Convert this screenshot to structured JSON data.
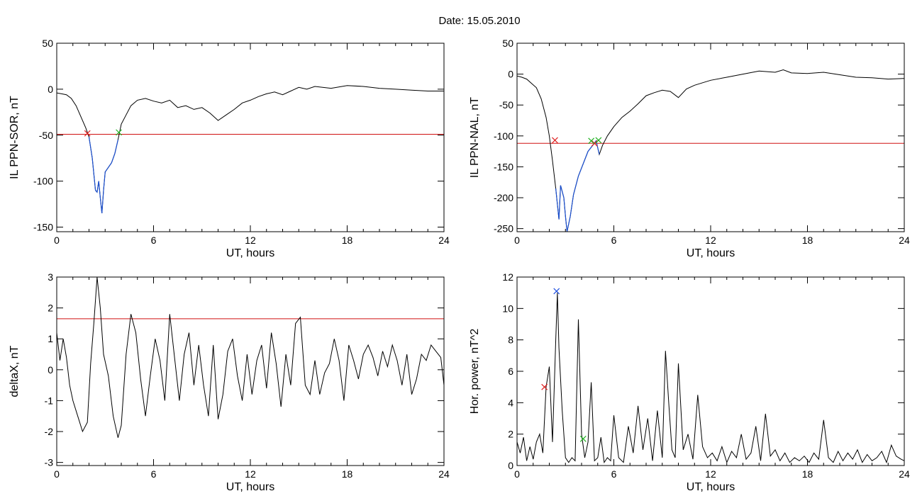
{
  "title": "Date:  15.05.2010",
  "chart_data": [
    {
      "id": "p1",
      "type": "line",
      "ylabel": "IL PPN-SOR, nT",
      "xlabel": "UT, hours",
      "xlim": [
        0,
        24
      ],
      "ylim": [
        -155,
        50
      ],
      "xticks": [
        0,
        6,
        12,
        18,
        24
      ],
      "yticks": [
        50,
        0,
        -50,
        -100,
        -150
      ],
      "threshold": -49,
      "x": [
        0,
        0.3,
        0.6,
        0.9,
        1.2,
        1.5,
        1.8,
        2.0,
        2.2,
        2.4,
        2.5,
        2.6,
        2.7,
        2.8,
        2.9,
        3.0,
        3.2,
        3.4,
        3.6,
        3.8,
        4.0,
        4.3,
        4.6,
        5.0,
        5.5,
        6.0,
        6.5,
        7.0,
        7.5,
        8.0,
        8.5,
        9.0,
        9.5,
        10.0,
        10.5,
        11.0,
        11.5,
        12.0,
        12.5,
        13.0,
        13.5,
        14.0,
        14.5,
        15.0,
        15.5,
        16.0,
        17.0,
        18.0,
        19.0,
        20.0,
        21.0,
        22.0,
        23.0,
        24.0
      ],
      "y": [
        -4,
        -5,
        -6,
        -10,
        -18,
        -30,
        -42,
        -52,
        -75,
        -110,
        -112,
        -100,
        -118,
        -135,
        -110,
        -90,
        -85,
        -80,
        -70,
        -55,
        -38,
        -28,
        -18,
        -12,
        -10,
        -13,
        -15,
        -12,
        -20,
        -18,
        -22,
        -20,
        -26,
        -34,
        -28,
        -22,
        -15,
        -12,
        -8,
        -5,
        -3,
        -6,
        -2,
        2,
        0,
        3,
        1,
        4,
        3,
        1,
        0,
        -1,
        -2,
        -2
      ],
      "highlight_range": [
        2.0,
        3.85
      ],
      "markers": [
        {
          "x": 1.9,
          "y": -48,
          "color": "#e02020"
        },
        {
          "x": 3.85,
          "y": -47,
          "color": "#20b020"
        }
      ]
    },
    {
      "id": "p2",
      "type": "line",
      "ylabel": "IL PPN-NAL, nT",
      "xlabel": "UT, hours",
      "xlim": [
        0,
        24
      ],
      "ylim": [
        -255,
        50
      ],
      "xticks": [
        0,
        6,
        12,
        18,
        24
      ],
      "yticks": [
        50,
        0,
        -50,
        -100,
        -150,
        -200,
        -250
      ],
      "threshold": -112,
      "x": [
        0,
        0.3,
        0.6,
        0.9,
        1.2,
        1.5,
        1.8,
        2.0,
        2.2,
        2.4,
        2.6,
        2.7,
        2.9,
        3.0,
        3.1,
        3.3,
        3.5,
        3.8,
        4.1,
        4.4,
        4.7,
        4.9,
        5.1,
        5.3,
        5.6,
        6.0,
        6.5,
        7.0,
        7.5,
        8.0,
        8.5,
        9.0,
        9.5,
        10.0,
        10.5,
        11.0,
        11.5,
        12.0,
        13.0,
        14.0,
        15.0,
        16.0,
        16.5,
        17.0,
        18.0,
        19.0,
        20.0,
        21.0,
        22.0,
        23.0,
        24.0
      ],
      "y": [
        -3,
        -5,
        -8,
        -15,
        -22,
        -40,
        -70,
        -100,
        -140,
        -185,
        -235,
        -180,
        -200,
        -230,
        -255,
        -230,
        -195,
        -165,
        -145,
        -125,
        -115,
        -108,
        -130,
        -115,
        -100,
        -85,
        -70,
        -60,
        -48,
        -35,
        -30,
        -26,
        -28,
        -38,
        -24,
        -18,
        -14,
        -10,
        -5,
        0,
        5,
        3,
        7,
        2,
        1,
        3,
        -1,
        -5,
        -6,
        -8,
        -7
      ],
      "highlight_range": [
        2.3,
        5.1
      ],
      "markers": [
        {
          "x": 2.35,
          "y": -107,
          "color": "#e02020"
        },
        {
          "x": 4.8,
          "y": -112,
          "color": "#e02020"
        },
        {
          "x": 4.6,
          "y": -108,
          "color": "#20b020"
        },
        {
          "x": 5.05,
          "y": -107,
          "color": "#20b020"
        }
      ]
    },
    {
      "id": "p3",
      "type": "line",
      "ylabel": "deltaX, nT",
      "xlabel": "UT, hours",
      "xlim": [
        0,
        24
      ],
      "ylim": [
        -3.1,
        3.0
      ],
      "xticks": [
        0,
        6,
        12,
        18,
        24
      ],
      "yticks": [
        3,
        2,
        1,
        0,
        -1,
        -2,
        -3
      ],
      "threshold": 1.65,
      "x": [
        0,
        0.2,
        0.4,
        0.6,
        0.8,
        1.0,
        1.3,
        1.6,
        1.9,
        2.1,
        2.3,
        2.5,
        2.7,
        2.9,
        3.2,
        3.5,
        3.8,
        4.0,
        4.3,
        4.6,
        4.9,
        5.2,
        5.5,
        5.8,
        6.1,
        6.4,
        6.7,
        7.0,
        7.3,
        7.6,
        7.9,
        8.2,
        8.5,
        8.8,
        9.1,
        9.4,
        9.7,
        10.0,
        10.3,
        10.6,
        10.9,
        11.2,
        11.5,
        11.8,
        12.1,
        12.4,
        12.7,
        13.0,
        13.3,
        13.6,
        13.9,
        14.2,
        14.5,
        14.8,
        15.1,
        15.4,
        15.7,
        16.0,
        16.3,
        16.6,
        16.9,
        17.2,
        17.5,
        17.8,
        18.1,
        18.4,
        18.7,
        19.0,
        19.3,
        19.6,
        19.9,
        20.2,
        20.5,
        20.8,
        21.1,
        21.4,
        21.7,
        22.0,
        22.3,
        22.6,
        22.9,
        23.2,
        23.5,
        23.8,
        24.0
      ],
      "y": [
        1.2,
        0.3,
        1.0,
        0.4,
        -0.5,
        -1.0,
        -1.5,
        -2.0,
        -1.7,
        0.2,
        1.5,
        3.0,
        2.0,
        0.5,
        -0.2,
        -1.5,
        -2.2,
        -1.8,
        0.5,
        1.8,
        1.2,
        -0.3,
        -1.5,
        -0.2,
        1.0,
        0.3,
        -1.0,
        1.8,
        0.4,
        -1.0,
        0.5,
        1.2,
        -0.5,
        0.8,
        -0.5,
        -1.5,
        0.8,
        -1.6,
        -0.8,
        0.6,
        1.0,
        -0.2,
        -1.0,
        0.5,
        -0.8,
        0.3,
        0.8,
        -0.6,
        1.2,
        0.2,
        -1.2,
        0.5,
        -0.5,
        1.5,
        1.7,
        -0.5,
        -0.8,
        0.3,
        -0.8,
        -0.1,
        0.2,
        1.0,
        0.3,
        -1.0,
        0.8,
        0.3,
        -0.3,
        0.5,
        0.8,
        0.4,
        -0.2,
        0.6,
        0.1,
        0.8,
        0.3,
        -0.5,
        0.5,
        -0.8,
        -0.3,
        0.5,
        0.3,
        0.8,
        0.6,
        0.4,
        -0.5
      ],
      "highlight_range": null,
      "markers": []
    },
    {
      "id": "p4",
      "type": "line",
      "ylabel": "Hor. power, nT^2",
      "xlabel": "UT, hours",
      "xlim": [
        0,
        24
      ],
      "ylim": [
        0,
        12
      ],
      "xticks": [
        0,
        6,
        12,
        18,
        24
      ],
      "yticks": [
        0,
        2,
        4,
        6,
        8,
        10,
        12
      ],
      "threshold": null,
      "x": [
        0,
        0.2,
        0.4,
        0.6,
        0.8,
        1.0,
        1.2,
        1.4,
        1.6,
        1.8,
        2.0,
        2.2,
        2.4,
        2.5,
        2.6,
        2.8,
        3.0,
        3.2,
        3.4,
        3.6,
        3.8,
        4.0,
        4.2,
        4.4,
        4.6,
        4.8,
        5.0,
        5.2,
        5.4,
        5.6,
        5.8,
        6.0,
        6.3,
        6.6,
        6.9,
        7.2,
        7.5,
        7.8,
        8.1,
        8.4,
        8.7,
        9.0,
        9.2,
        9.4,
        9.6,
        9.8,
        10.0,
        10.3,
        10.6,
        10.9,
        11.2,
        11.5,
        11.8,
        12.1,
        12.4,
        12.7,
        13.0,
        13.3,
        13.6,
        13.9,
        14.2,
        14.5,
        14.8,
        15.1,
        15.4,
        15.7,
        16.0,
        16.3,
        16.6,
        16.9,
        17.2,
        17.5,
        17.8,
        18.1,
        18.4,
        18.7,
        19.0,
        19.3,
        19.6,
        19.9,
        20.2,
        20.5,
        20.8,
        21.1,
        21.4,
        21.7,
        22.0,
        22.3,
        22.6,
        22.9,
        23.2,
        23.5,
        23.8,
        24.0
      ],
      "y": [
        1.5,
        0.8,
        1.8,
        0.3,
        1.2,
        0.4,
        1.5,
        2.0,
        0.8,
        5.0,
        6.3,
        1.5,
        8.0,
        11.0,
        7.5,
        3.5,
        0.5,
        0.2,
        0.5,
        0.3,
        9.3,
        2.0,
        0.5,
        1.5,
        5.3,
        0.3,
        0.5,
        1.8,
        0.2,
        0.5,
        0.3,
        3.2,
        0.5,
        0.2,
        2.5,
        0.8,
        3.8,
        1.0,
        3.0,
        0.3,
        3.5,
        0.5,
        7.3,
        4.0,
        1.0,
        0.5,
        6.5,
        1.0,
        2.0,
        0.4,
        4.5,
        1.2,
        0.5,
        0.8,
        0.3,
        1.2,
        0.2,
        0.9,
        0.5,
        2.0,
        0.4,
        0.8,
        2.5,
        0.3,
        3.3,
        0.6,
        1.0,
        0.3,
        0.8,
        0.2,
        0.5,
        0.3,
        0.6,
        0.2,
        0.8,
        0.4,
        2.9,
        0.5,
        0.2,
        0.9,
        0.3,
        0.8,
        0.4,
        1.0,
        0.2,
        0.7,
        0.3,
        0.5,
        0.9,
        0.2,
        1.3,
        0.6,
        0.4,
        0.3
      ],
      "highlight_range": null,
      "markers": [
        {
          "x": 1.7,
          "y": 5.0,
          "color": "#e02020"
        },
        {
          "x": 2.45,
          "y": 11.1,
          "color": "#2050e0"
        },
        {
          "x": 4.1,
          "y": 1.7,
          "color": "#20b020"
        }
      ]
    }
  ]
}
